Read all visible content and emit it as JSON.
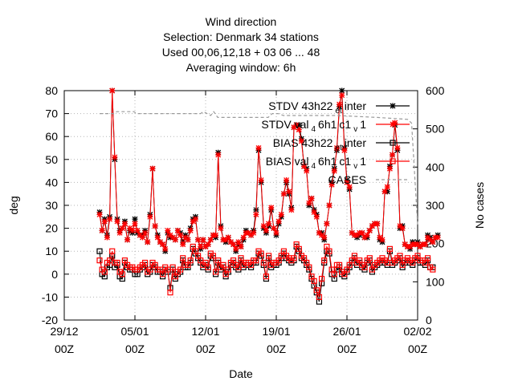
{
  "chart_data": {
    "type": "line",
    "title_lines": [
      "Wind direction",
      "Selection: Denmark      34 stations",
      "Used  00,06,12,18  + 03 06 ... 48",
      "Averaging window:  6h"
    ],
    "xlabel": "Date",
    "ylabel": "deg",
    "y2label": "No cases",
    "ylim": [
      -20,
      80
    ],
    "y2lim": [
      0,
      600
    ],
    "yticks": [
      -20,
      -10,
      0,
      10,
      20,
      30,
      40,
      50,
      60,
      70,
      80
    ],
    "y2ticks": [
      0,
      100,
      200,
      300,
      400,
      500,
      600
    ],
    "xticks": [
      {
        "day": 0,
        "line1": "29/12",
        "line2": "00Z"
      },
      {
        "day": 7,
        "line1": "05/01",
        "line2": "00Z"
      },
      {
        "day": 14,
        "line1": "12/01",
        "line2": "00Z"
      },
      {
        "day": 21,
        "line1": "19/01",
        "line2": "00Z"
      },
      {
        "day": 28,
        "line1": "26/01",
        "line2": "00Z"
      },
      {
        "day": 35,
        "line1": "02/02",
        "line2": "00Z"
      }
    ],
    "x_day_zero": "29/12 00Z",
    "x_step_hours": 6,
    "grid": true,
    "legend_position": "top-right",
    "series": [
      {
        "name": "STDV 43h22_et_inter",
        "legend_parts": [
          "STDV 43h22",
          "et",
          "inter"
        ],
        "axis": "y1",
        "color": "#000000",
        "marker": "star",
        "x_start_day": 3.5,
        "values": [
          27,
          19,
          24,
          17,
          25,
          80,
          50,
          24,
          19,
          20,
          23,
          15,
          19,
          18,
          24,
          18,
          17,
          17,
          19,
          14,
          26,
          46,
          21,
          17,
          14,
          13,
          10,
          18,
          16,
          16,
          15,
          19,
          18,
          14,
          17,
          15,
          20,
          24,
          25,
          15,
          11,
          15,
          12,
          13,
          15,
          17,
          16,
          53,
          21,
          15,
          14,
          16,
          14,
          13,
          10,
          13,
          12,
          15,
          19,
          18,
          17,
          19,
          28,
          54,
          40,
          20,
          18,
          21,
          28,
          20,
          17,
          22,
          25,
          35,
          40,
          35,
          29,
          64,
          65,
          65,
          59,
          47,
          46,
          30,
          33,
          28,
          26,
          18,
          18,
          15,
          22,
          30,
          40,
          46,
          54,
          73,
          80,
          55,
          41,
          37,
          18,
          17,
          16,
          17,
          18,
          16,
          16,
          19,
          21,
          22,
          22,
          15,
          14,
          36,
          36,
          47,
          52,
          65,
          54,
          20,
          21,
          13,
          12,
          11,
          14,
          13,
          14,
          12,
          13,
          13,
          17,
          16,
          14,
          16,
          17
        ]
      },
      {
        "name": "STDV val_4 6h1_c1_v 1",
        "legend_parts": [
          "STDV val",
          "4",
          "6h1",
          "c1",
          "v",
          "1"
        ],
        "axis": "y1",
        "color": "#ff0000",
        "marker": "star",
        "x_start_day": 3.5,
        "values": [
          26,
          19,
          23,
          16,
          24,
          80,
          51,
          23,
          18,
          20,
          22,
          15,
          20,
          19,
          22,
          19,
          17,
          16,
          18,
          14,
          25,
          46,
          21,
          16,
          14,
          13,
          11,
          19,
          17,
          16,
          15,
          19,
          17,
          13,
          16,
          15,
          19,
          23,
          24,
          15,
          12,
          15,
          12,
          13,
          15,
          17,
          17,
          52,
          20,
          15,
          15,
          16,
          14,
          13,
          11,
          14,
          12,
          16,
          18,
          18,
          17,
          18,
          26,
          55,
          41,
          21,
          19,
          22,
          29,
          20,
          18,
          23,
          26,
          35,
          41,
          36,
          28,
          64,
          65,
          63,
          58,
          47,
          45,
          31,
          33,
          27,
          25,
          18,
          17,
          16,
          22,
          30,
          39,
          45,
          55,
          74,
          78,
          54,
          40,
          38,
          18,
          17,
          17,
          18,
          18,
          16,
          17,
          19,
          21,
          22,
          22,
          16,
          15,
          36,
          38,
          46,
          52,
          66,
          55,
          21,
          20,
          13,
          12,
          12,
          13,
          13,
          13,
          12,
          13,
          13,
          16,
          15,
          14,
          16,
          16
        ]
      },
      {
        "name": "BIAS 43h22_et_inter",
        "legend_parts": [
          "BIAS 43h22",
          "et",
          "inter"
        ],
        "axis": "y1",
        "color": "#000000",
        "marker": "square",
        "x_start_day": 3.5,
        "values": [
          10,
          0,
          -1,
          3,
          4,
          8,
          3,
          4,
          -1,
          -2,
          5,
          3,
          2,
          2,
          0,
          0,
          2,
          3,
          4,
          0,
          1,
          4,
          3,
          1,
          1,
          -1,
          2,
          1,
          -6,
          2,
          -2,
          0,
          1,
          6,
          3,
          3,
          5,
          11,
          9,
          7,
          5,
          3,
          4,
          2,
          8,
          7,
          0,
          5,
          2,
          3,
          -1,
          1,
          4,
          5,
          3,
          2,
          6,
          3,
          4,
          4,
          3,
          5,
          5,
          9,
          8,
          4,
          -2,
          7,
          3,
          4,
          4,
          5,
          7,
          9,
          7,
          6,
          5,
          6,
          12,
          10,
          7,
          6,
          4,
          2,
          -2,
          -5,
          -8,
          -12,
          -4,
          5,
          10,
          9,
          0,
          -2,
          2,
          3,
          0,
          -1,
          1,
          3,
          5,
          7,
          4,
          5,
          3,
          2,
          5,
          6,
          1,
          3,
          4,
          5,
          6,
          5,
          4,
          10,
          4,
          5,
          6,
          7,
          3,
          5,
          6,
          5,
          4,
          6,
          7,
          5,
          5,
          4,
          6,
          3,
          3
        ]
      },
      {
        "name": "BIAS val_4 6h1_c1_v 1",
        "legend_parts": [
          "BIAS val",
          "4",
          "6h1",
          "c1",
          "v",
          "1"
        ],
        "axis": "y1",
        "color": "#ff0000",
        "marker": "square",
        "x_start_day": 3.5,
        "values": [
          6,
          2,
          1,
          5,
          6,
          10,
          5,
          5,
          1,
          0,
          6,
          4,
          3,
          3,
          2,
          2,
          3,
          4,
          5,
          1,
          2,
          5,
          4,
          2,
          2,
          0,
          3,
          2,
          -8,
          3,
          -1,
          1,
          2,
          7,
          4,
          4,
          6,
          12,
          10,
          8,
          6,
          4,
          5,
          3,
          9,
          8,
          1,
          6,
          3,
          4,
          0,
          2,
          5,
          6,
          4,
          3,
          7,
          4,
          5,
          5,
          4,
          6,
          6,
          10,
          9,
          5,
          -1,
          8,
          4,
          5,
          5,
          6,
          8,
          10,
          8,
          7,
          6,
          7,
          13,
          11,
          8,
          7,
          5,
          3,
          -1,
          -3,
          -7,
          -10,
          -2,
          6,
          12,
          10,
          2,
          0,
          4,
          4,
          1,
          0,
          2,
          4,
          6,
          8,
          5,
          6,
          4,
          3,
          6,
          7,
          2,
          4,
          5,
          6,
          7,
          6,
          5,
          11,
          5,
          6,
          7,
          8,
          4,
          6,
          7,
          6,
          5,
          7,
          8,
          6,
          6,
          5,
          7,
          3,
          2
        ]
      },
      {
        "name": "CASES",
        "legend_parts": [
          "CASES"
        ],
        "axis": "y2",
        "color": "#9a9a9a",
        "marker": "none",
        "x": [
          3.5,
          4.9,
          5.2,
          6.9,
          7.2,
          13.5,
          13.8,
          14.5,
          14.8,
          15.2,
          15.6,
          20.2,
          20.6,
          21.2,
          21.7,
          22.5,
          27.0,
          31.0,
          34.0,
          34.4,
          35.0
        ],
        "values": [
          540,
          540,
          545,
          545,
          540,
          540,
          545,
          535,
          545,
          530,
          530,
          530,
          540,
          540,
          535,
          535,
          535,
          530,
          525,
          515,
          250
        ]
      }
    ]
  }
}
